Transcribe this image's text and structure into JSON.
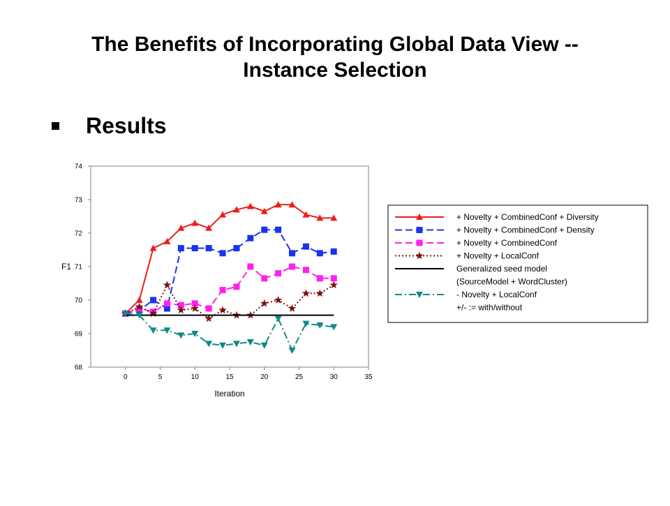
{
  "slide": {
    "title_line1": "The Benefits of Incorporating Global Data View --",
    "title_line2": "Instance Selection",
    "bullet": "Results"
  },
  "chart_data": {
    "type": "line",
    "xlabel": "Iteration",
    "ylabel": "F1",
    "xlim": [
      -5,
      35
    ],
    "ylim": [
      68,
      74
    ],
    "xticks": [
      0,
      5,
      10,
      15,
      20,
      25,
      30,
      35
    ],
    "yticks": [
      68,
      69,
      70,
      71,
      72,
      73,
      74
    ],
    "legend_position": "right",
    "legend_note": "+/- := with/without",
    "series": [
      {
        "name": "+ Novelty + CombinedConf + Diversity",
        "color": "#ee1c1c",
        "dash": "solid",
        "marker": "triangle-up",
        "x": [
          0,
          2,
          4,
          6,
          8,
          10,
          12,
          14,
          16,
          18,
          20,
          22,
          24,
          26,
          28,
          30
        ],
        "y": [
          69.6,
          70.0,
          71.55,
          71.75,
          72.15,
          72.3,
          72.15,
          72.55,
          72.7,
          72.8,
          72.65,
          72.85,
          72.85,
          72.55,
          72.45,
          72.45
        ]
      },
      {
        "name": "+ Novelty + CombinedConf + Density",
        "color": "#1a33ee",
        "dash": "dash",
        "marker": "square",
        "x": [
          0,
          2,
          4,
          6,
          8,
          10,
          12,
          14,
          16,
          18,
          20,
          22,
          24,
          26,
          28,
          30
        ],
        "y": [
          69.6,
          69.7,
          70.0,
          69.75,
          71.55,
          71.55,
          71.55,
          71.4,
          71.55,
          71.85,
          72.1,
          72.1,
          71.4,
          71.6,
          71.4,
          71.45
        ]
      },
      {
        "name": "+ Novelty + CombinedConf",
        "color": "#ff22ee",
        "dash": "dash",
        "marker": "square",
        "x": [
          0,
          2,
          4,
          6,
          8,
          10,
          12,
          14,
          16,
          18,
          20,
          22,
          24,
          26,
          28,
          30
        ],
        "y": [
          69.6,
          69.75,
          69.65,
          69.9,
          69.85,
          69.9,
          69.75,
          70.3,
          70.4,
          71.0,
          70.65,
          70.8,
          71.0,
          70.9,
          70.65,
          70.65
        ]
      },
      {
        "name": "+ Novelty + LocalConf",
        "color": "#7b1010",
        "dash": "dot",
        "marker": "star",
        "x": [
          0,
          2,
          4,
          6,
          8,
          10,
          12,
          14,
          16,
          18,
          20,
          22,
          24,
          26,
          28,
          30
        ],
        "y": [
          69.6,
          69.8,
          69.6,
          70.45,
          69.7,
          69.75,
          69.45,
          69.7,
          69.55,
          69.55,
          69.9,
          70.0,
          69.75,
          70.2,
          70.2,
          70.45
        ]
      },
      {
        "name": "Generalized seed model",
        "name_line2": "(SourceModel + WordCluster)",
        "color": "#000000",
        "dash": "solid",
        "marker": "none",
        "x": [
          0,
          30
        ],
        "y": [
          69.55,
          69.55
        ]
      },
      {
        "name": "- Novelty + LocalConf",
        "color": "#108888",
        "dash": "dashdot",
        "marker": "triangle-down",
        "x": [
          0,
          2,
          4,
          6,
          8,
          10,
          12,
          14,
          16,
          18,
          20,
          22,
          24,
          26,
          28,
          30
        ],
        "y": [
          69.6,
          69.55,
          69.1,
          69.1,
          68.95,
          69.0,
          68.7,
          68.65,
          68.7,
          68.75,
          68.65,
          69.45,
          68.5,
          69.3,
          69.25,
          69.2
        ]
      }
    ]
  }
}
